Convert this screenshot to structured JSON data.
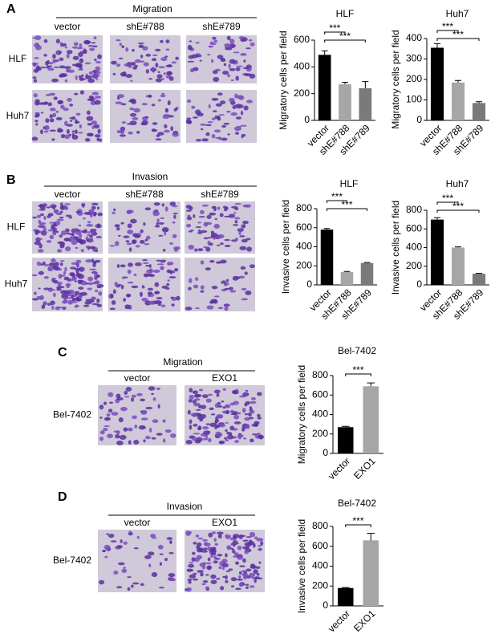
{
  "panels": [
    {
      "label": "A",
      "header": "Migration",
      "columns": [
        "vector",
        "shE#788",
        "shE#789"
      ],
      "rows": [
        "HLF",
        "Huh7"
      ]
    },
    {
      "label": "B",
      "header": "Invasion",
      "columns": [
        "vector",
        "shE#788",
        "shE#789"
      ],
      "rows": [
        "HLF",
        "Huh7"
      ]
    },
    {
      "label": "C",
      "header": "Migration",
      "columns": [
        "vector",
        "EXO1"
      ],
      "rows": [
        "Bel-7402"
      ]
    },
    {
      "label": "D",
      "header": "Invasion",
      "columns": [
        "vector",
        "EXO1"
      ],
      "rows": [
        "Bel-7402"
      ]
    }
  ],
  "chart_data": [
    {
      "type": "bar",
      "title": "HLF",
      "y_label": "Migratory cells per field",
      "categories": [
        "vector",
        "shE#788",
        "shE#789"
      ],
      "values": [
        490,
        270,
        240
      ],
      "errors": [
        30,
        15,
        50
      ],
      "colors": [
        "#000000",
        "#a6a6a6",
        "#7a7a7a"
      ],
      "ylim": [
        0,
        600
      ],
      "yticks": [
        0,
        200,
        400,
        600
      ],
      "annotations": [
        "***",
        "***"
      ]
    },
    {
      "type": "bar",
      "title": "Huh7",
      "y_label": "Migratory cells per field",
      "categories": [
        "vector",
        "shE#788",
        "shE#789"
      ],
      "values": [
        355,
        185,
        85
      ],
      "errors": [
        20,
        10,
        6
      ],
      "colors": [
        "#000000",
        "#a6a6a6",
        "#7a7a7a"
      ],
      "ylim": [
        0,
        400
      ],
      "yticks": [
        0,
        100,
        200,
        300,
        400
      ],
      "annotations": [
        "***",
        "***"
      ]
    },
    {
      "type": "bar",
      "title": "HLF",
      "y_label": "Invasive cells per field",
      "categories": [
        "vector",
        "shE#788",
        "shE#789"
      ],
      "values": [
        580,
        135,
        230
      ],
      "errors": [
        12,
        6,
        5
      ],
      "colors": [
        "#000000",
        "#a6a6a6",
        "#7a7a7a"
      ],
      "ylim": [
        0,
        800
      ],
      "yticks": [
        0,
        200,
        400,
        600,
        800
      ],
      "annotations": [
        "***",
        "***"
      ]
    },
    {
      "type": "bar",
      "title": "Huh7",
      "y_label": "Invasive cells per field",
      "categories": [
        "vector",
        "shE#788",
        "shE#789"
      ],
      "values": [
        700,
        400,
        120
      ],
      "errors": [
        20,
        8,
        4
      ],
      "colors": [
        "#000000",
        "#a6a6a6",
        "#7a7a7a"
      ],
      "ylim": [
        0,
        800
      ],
      "yticks": [
        0,
        200,
        400,
        600,
        800
      ],
      "annotations": [
        "***",
        "***"
      ]
    },
    {
      "type": "bar",
      "title": "Bel-7402",
      "y_label": "Migratory cells per field",
      "categories": [
        "vector",
        "EXO1"
      ],
      "values": [
        270,
        690
      ],
      "errors": [
        8,
        35
      ],
      "colors": [
        "#000000",
        "#a6a6a6"
      ],
      "ylim": [
        0,
        800
      ],
      "yticks": [
        0,
        200,
        400,
        600,
        800
      ],
      "annotations": [
        "***"
      ]
    },
    {
      "type": "bar",
      "title": "Bel-7402",
      "y_label": "Invasive cells per field",
      "categories": [
        "vector",
        "EXO1"
      ],
      "values": [
        180,
        660
      ],
      "errors": [
        5,
        70
      ],
      "colors": [
        "#000000",
        "#a6a6a6"
      ],
      "ylim": [
        0,
        800
      ],
      "yticks": [
        0,
        200,
        400,
        600,
        800
      ],
      "annotations": [
        "***"
      ]
    }
  ]
}
